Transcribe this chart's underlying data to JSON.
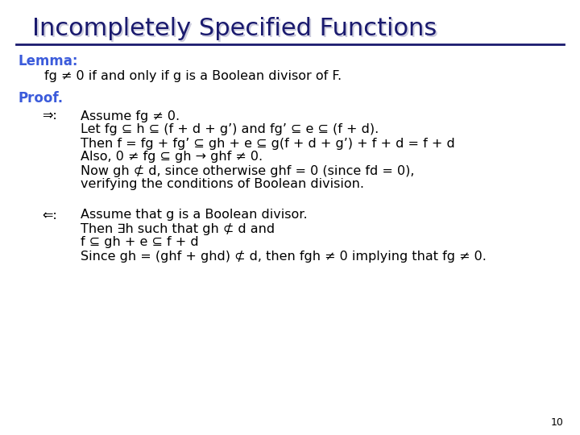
{
  "title": "Incompletely Specified Functions",
  "title_color": "#1a1a6e",
  "background_color": "#ffffff",
  "line_color": "#1a1a6e",
  "lemma_label": "Lemma:",
  "lemma_label_color": "#3b5bdb",
  "lemma_text": "fg ≠ 0 if and only if g is a Boolean divisor of F.",
  "proof_label": "Proof.",
  "proof_label_color": "#3b5bdb",
  "forward_arrow": "⇒:",
  "backward_arrow": "⇐:",
  "forward_lines": [
    "Assume fg ≠ 0.",
    "Let fg ⊆ h ⊆ (f + d + g’) and fg’ ⊆ e ⊆ (f + d).",
    "Then f = fg + fg’ ⊆ gh + e ⊆ g(f + d + g’) + f + d = f + d",
    "Also, 0 ≠ fg ⊆ gh → ghf ≠ 0.",
    "Now gh ⊄ d, since otherwise ghf = 0 (since fd = 0),",
    "verifying the conditions of Boolean division."
  ],
  "backward_lines": [
    "Assume that g is a Boolean divisor.",
    "Then ∃h such that gh ⊄ d and",
    "f ⊆ gh + e ⊆ f + d",
    "Since gh = (ghf + ghd) ⊄ d, then fgh ≠ 0 implying that fg ≠ 0."
  ],
  "page_number": "10",
  "font_size_title": 22,
  "font_size_body": 11.5,
  "font_size_label": 12,
  "font_size_page": 9
}
